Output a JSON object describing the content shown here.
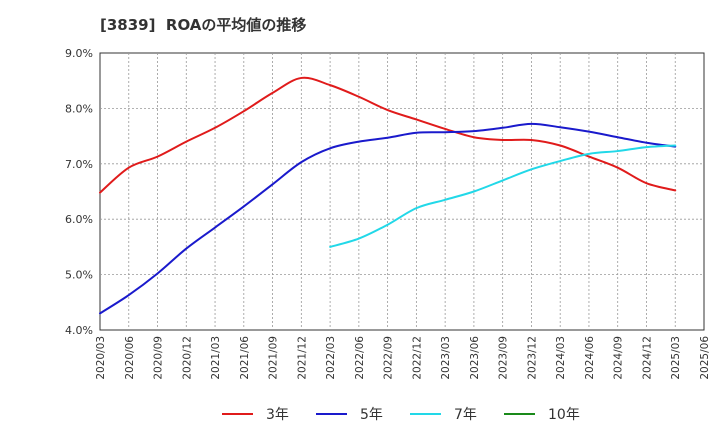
{
  "chart_data": {
    "type": "line",
    "title": "[3839]  ROAの平均値の推移",
    "xlabel": "",
    "ylabel": "",
    "ylim": [
      4.0,
      9.0
    ],
    "yticks": [
      "4.0%",
      "5.0%",
      "6.0%",
      "7.0%",
      "8.0%",
      "9.0%"
    ],
    "x": [
      "2020/03",
      "2020/06",
      "2020/09",
      "2020/12",
      "2021/03",
      "2021/06",
      "2021/09",
      "2021/12",
      "2022/03",
      "2022/06",
      "2022/09",
      "2022/12",
      "2023/03",
      "2023/06",
      "2023/09",
      "2023/12",
      "2024/03",
      "2024/06",
      "2024/09",
      "2024/12",
      "2025/03",
      "2025/06"
    ],
    "grid": true,
    "legend_position": "bottom",
    "series": [
      {
        "name": "3年",
        "color": "#e01b1b",
        "values": [
          6.48,
          6.93,
          7.13,
          7.4,
          7.65,
          7.95,
          8.28,
          8.55,
          8.42,
          8.21,
          7.97,
          7.8,
          7.63,
          7.48,
          7.43,
          7.43,
          7.33,
          7.13,
          6.93,
          6.65,
          6.52,
          null
        ]
      },
      {
        "name": "5年",
        "color": "#1a1acc",
        "values": [
          4.3,
          4.63,
          5.02,
          5.47,
          5.85,
          6.23,
          6.63,
          7.03,
          7.28,
          7.4,
          7.47,
          7.56,
          7.57,
          7.59,
          7.65,
          7.72,
          7.66,
          7.58,
          7.48,
          7.38,
          7.31,
          null
        ]
      },
      {
        "name": "7年",
        "color": "#22d8e8",
        "values": [
          null,
          null,
          null,
          null,
          null,
          null,
          null,
          null,
          5.5,
          5.65,
          5.9,
          6.2,
          6.35,
          6.5,
          6.7,
          6.9,
          7.05,
          7.18,
          7.23,
          7.3,
          7.33,
          null
        ]
      },
      {
        "name": "10年",
        "color": "#1a8a1a",
        "values": [
          null,
          null,
          null,
          null,
          null,
          null,
          null,
          null,
          null,
          null,
          null,
          null,
          null,
          null,
          null,
          null,
          null,
          null,
          null,
          null,
          null,
          null
        ]
      }
    ]
  }
}
